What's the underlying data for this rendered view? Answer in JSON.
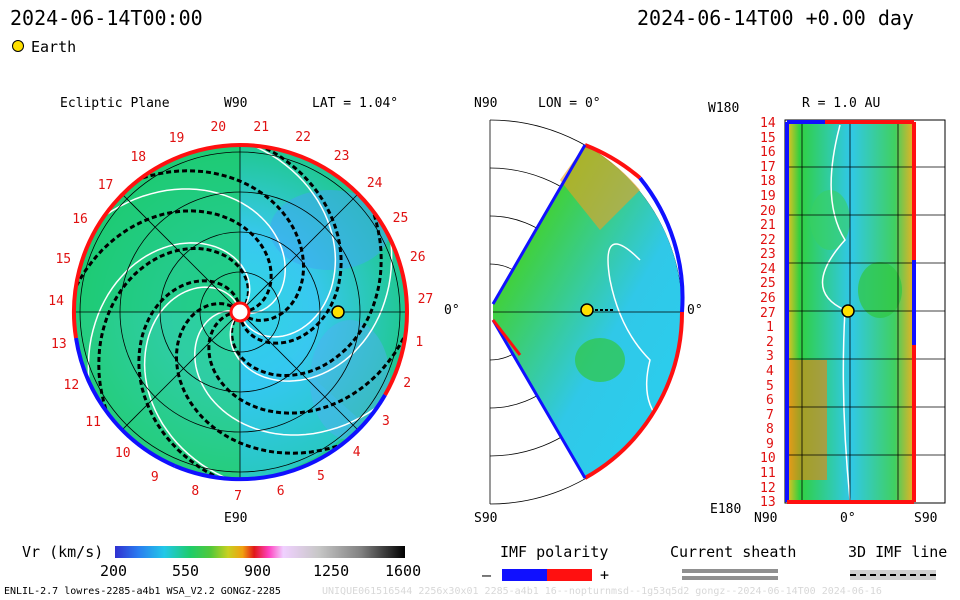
{
  "header": {
    "left_time": "2024-06-14T00:00",
    "right_time": "2024-06-14T00 +0.00 day",
    "earth_label": "Earth"
  },
  "panel_ecliptic": {
    "title": "Ecliptic Plane",
    "top_axis": "W90",
    "bottom_axis": "E90",
    "right_axis": "0°",
    "lat": "LAT = 1.04°",
    "numbers": [
      "20",
      "21",
      "22",
      "23",
      "24",
      "25",
      "26",
      "27",
      "1",
      "2",
      "3",
      "4",
      "5",
      "6",
      "7",
      "8",
      "9",
      "10",
      "11",
      "12",
      "13",
      "14",
      "15",
      "16",
      "17",
      "18",
      "19"
    ]
  },
  "panel_meridional": {
    "top_axis": "N90",
    "lon": "LON = 0°",
    "bottom_axis": "S90",
    "right_axis": "0°"
  },
  "panel_r": {
    "top_left": "W180",
    "title": "R = 1.0 AU",
    "bottom_left": "E180",
    "x_ticks": [
      "N90",
      "0°",
      "S90"
    ],
    "y_labels": [
      "14",
      "15",
      "16",
      "17",
      "18",
      "19",
      "20",
      "21",
      "22",
      "23",
      "24",
      "25",
      "26",
      "27",
      "1",
      "2",
      "3",
      "4",
      "5",
      "6",
      "7",
      "8",
      "9",
      "10",
      "11",
      "12",
      "13"
    ]
  },
  "colorbar": {
    "label": "Vr (km/s)",
    "ticks": [
      "200",
      "550",
      "900",
      "1250",
      "1600"
    ],
    "colors": [
      "#3030d0",
      "#2a7cf0",
      "#22c8e8",
      "#1ecc6a",
      "#52c83a",
      "#c8d020",
      "#f0a010",
      "#e01818",
      "#ff40c0",
      "#f0d0ff",
      "#c8c8c8",
      "#808080",
      "#303030",
      "#000000"
    ]
  },
  "legend": {
    "imf_title": "IMF polarity",
    "imf_minus": "–",
    "imf_plus": "+",
    "imf_neg_color": "#1010ff",
    "imf_pos_color": "#ff1010",
    "sheath_title": "Current sheath",
    "imf_line_title": "3D IMF line"
  },
  "footer": {
    "model": "ENLIL-2.7 lowres-2285-a4b1 WSA_V2.2 GONGZ-2285",
    "run_id": "UNIQUE061516544 2256x30x01 2285-a4b1 16--nopturnmsd--1g53q5d2 gongz--2024-06-14T00  2024-06-16"
  }
}
